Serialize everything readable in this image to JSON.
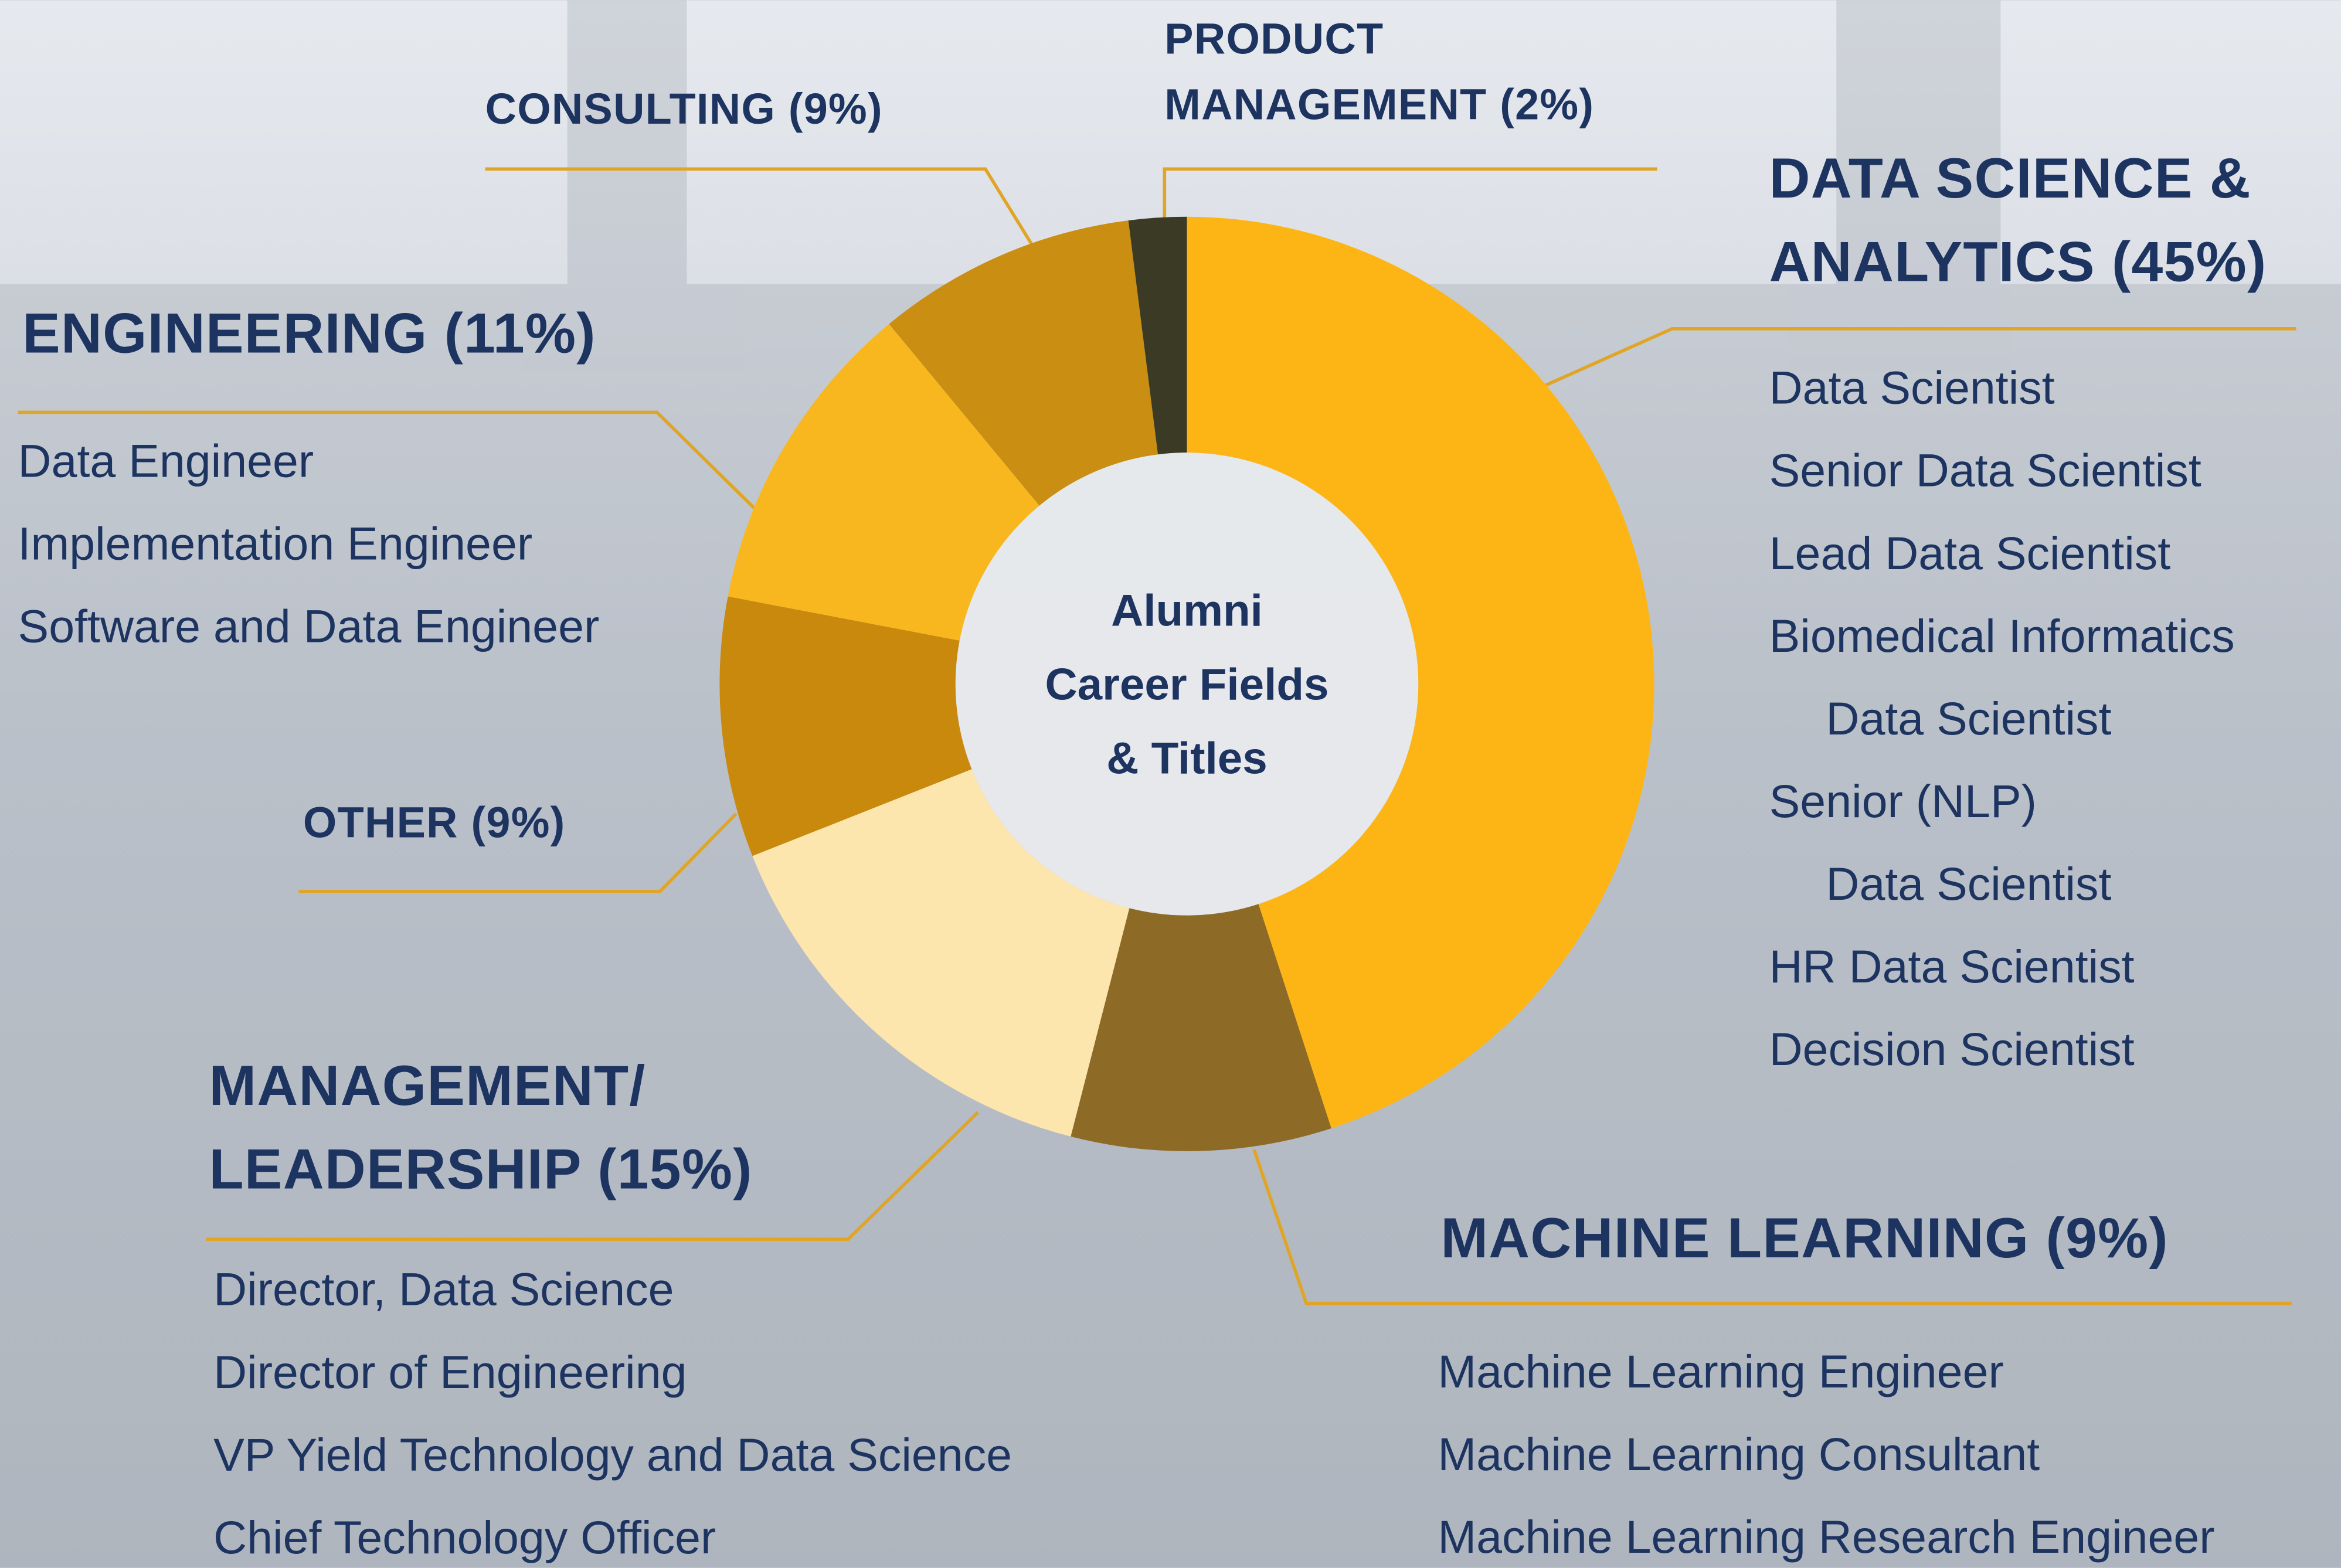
{
  "chart_data": {
    "type": "pie",
    "center_label": [
      "Alumni",
      "Career Fields",
      "& Titles"
    ],
    "slices": [
      {
        "label": [
          "DATA SCIENCE &",
          "ANALYTICS (45%)"
        ],
        "value": 45,
        "color": "#fdb515",
        "titles": [
          [
            "Data Scientist"
          ],
          [
            "Senior Data Scientist"
          ],
          [
            "Lead Data Scientist"
          ],
          [
            "Biomedical Informatics",
            "Data Scientist"
          ],
          [
            "Senior (NLP)",
            "Data Scientist"
          ],
          [
            "HR Data Scientist"
          ],
          [
            "Decision Scientist"
          ]
        ]
      },
      {
        "label": [
          "MACHINE LEARNING (9%)"
        ],
        "value": 9,
        "color": "#8d6b26",
        "titles": [
          [
            "Machine Learning Engineer"
          ],
          [
            "Machine Learning Consultant"
          ],
          [
            "Machine Learning Research Engineer"
          ]
        ]
      },
      {
        "label": [
          "MANAGEMENT/",
          "LEADERSHIP (15%)"
        ],
        "value": 15,
        "color": "#fde5ae",
        "titles": [
          [
            "Director, Data Science"
          ],
          [
            "Director of Engineering"
          ],
          [
            "VP Yield Technology and Data Science"
          ],
          [
            "Chief Technology Officer"
          ]
        ]
      },
      {
        "label": [
          "OTHER (9%)"
        ],
        "value": 9,
        "color": "#c8890d",
        "titles": []
      },
      {
        "label": [
          "ENGINEERING (11%)"
        ],
        "value": 11,
        "color": "#f8b71e",
        "titles": [
          [
            "Data Engineer"
          ],
          [
            "Implementation Engineer"
          ],
          [
            "Software and Data Engineer"
          ]
        ]
      },
      {
        "label": [
          "CONSULTING (9%)"
        ],
        "value": 9,
        "color": "#c98e12",
        "titles": []
      },
      {
        "label": [
          "PRODUCT",
          "MANAGEMENT (2%)"
        ],
        "value": 2,
        "color": "#3b3a24",
        "titles": []
      }
    ]
  }
}
